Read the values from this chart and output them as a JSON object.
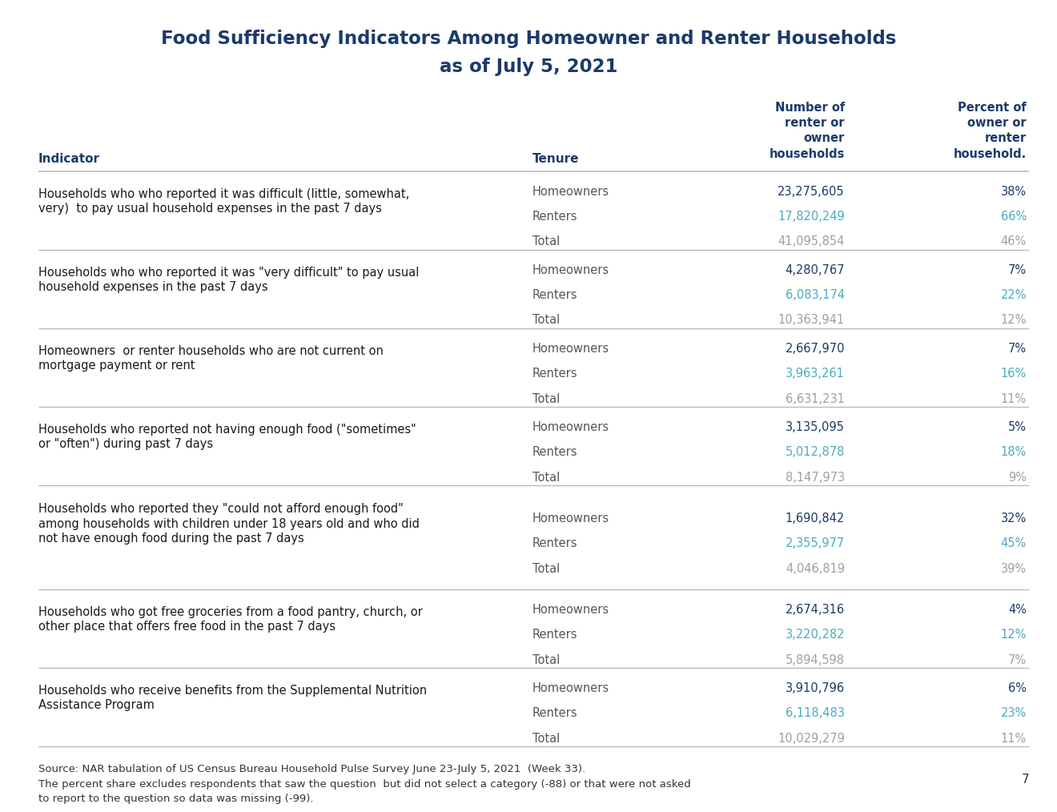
{
  "title_line1": "Food Sufficiency Indicators Among Homeowner and Renter Households",
  "title_line2": "as of July 5, 2021",
  "title_color": "#1a3a6b",
  "rows": [
    {
      "indicator": "Households who who reported it was difficult (little, somewhat,\nvery)  to pay usual household expenses in the past 7 days",
      "n_ind_lines": 2,
      "sub_rows": [
        {
          "tenure": "Homeowners",
          "number": "23,275,605",
          "percent": "38%",
          "num_color": "#1a3a6b",
          "pct_color": "#1a3a6b"
        },
        {
          "tenure": "Renters",
          "number": "17,820,249",
          "percent": "66%",
          "num_color": "#4aacbf",
          "pct_color": "#4aacbf"
        },
        {
          "tenure": "Total",
          "number": "41,095,854",
          "percent": "46%",
          "num_color": "#a0a0a0",
          "pct_color": "#a0a0a0"
        }
      ]
    },
    {
      "indicator": "Households who who reported it was \"very difficult\" to pay usual\nhousehold expenses in the past 7 days",
      "n_ind_lines": 2,
      "sub_rows": [
        {
          "tenure": "Homeowners",
          "number": "4,280,767",
          "percent": "7%",
          "num_color": "#1a3a6b",
          "pct_color": "#1a3a6b"
        },
        {
          "tenure": "Renters",
          "number": "6,083,174",
          "percent": "22%",
          "num_color": "#4aacbf",
          "pct_color": "#4aacbf"
        },
        {
          "tenure": "Total",
          "number": "10,363,941",
          "percent": "12%",
          "num_color": "#a0a0a0",
          "pct_color": "#a0a0a0"
        }
      ]
    },
    {
      "indicator": "Homeowners  or renter households who are not current on\nmortgage payment or rent",
      "n_ind_lines": 2,
      "sub_rows": [
        {
          "tenure": "Homeowners",
          "number": "2,667,970",
          "percent": "7%",
          "num_color": "#1a3a6b",
          "pct_color": "#1a3a6b"
        },
        {
          "tenure": "Renters",
          "number": "3,963,261",
          "percent": "16%",
          "num_color": "#4aacbf",
          "pct_color": "#4aacbf"
        },
        {
          "tenure": "Total",
          "number": "6,631,231",
          "percent": "11%",
          "num_color": "#a0a0a0",
          "pct_color": "#a0a0a0"
        }
      ]
    },
    {
      "indicator": "Households who reported not having enough food (\"sometimes\"\nor \"often\") during past 7 days",
      "n_ind_lines": 2,
      "sub_rows": [
        {
          "tenure": "Homeowners",
          "number": "3,135,095",
          "percent": "5%",
          "num_color": "#1a3a6b",
          "pct_color": "#1a3a6b"
        },
        {
          "tenure": "Renters",
          "number": "5,012,878",
          "percent": "18%",
          "num_color": "#4aacbf",
          "pct_color": "#4aacbf"
        },
        {
          "tenure": "Total",
          "number": "8,147,973",
          "percent": "9%",
          "num_color": "#a0a0a0",
          "pct_color": "#a0a0a0"
        }
      ]
    },
    {
      "indicator": "Households who reported they \"could not afford enough food\"\namong households with children under 18 years old and who did\nnot have enough food during the past 7 days",
      "n_ind_lines": 3,
      "sub_rows": [
        {
          "tenure": "Homeowners",
          "number": "1,690,842",
          "percent": "32%",
          "num_color": "#1a3a6b",
          "pct_color": "#1a3a6b"
        },
        {
          "tenure": "Renters",
          "number": "2,355,977",
          "percent": "45%",
          "num_color": "#4aacbf",
          "pct_color": "#4aacbf"
        },
        {
          "tenure": "Total",
          "number": "4,046,819",
          "percent": "39%",
          "num_color": "#a0a0a0",
          "pct_color": "#a0a0a0"
        }
      ]
    },
    {
      "indicator": "Households who got free groceries from a food pantry, church, or\nother place that offers free food in the past 7 days",
      "n_ind_lines": 2,
      "sub_rows": [
        {
          "tenure": "Homeowners",
          "number": "2,674,316",
          "percent": "4%",
          "num_color": "#1a3a6b",
          "pct_color": "#1a3a6b"
        },
        {
          "tenure": "Renters",
          "number": "3,220,282",
          "percent": "12%",
          "num_color": "#4aacbf",
          "pct_color": "#4aacbf"
        },
        {
          "tenure": "Total",
          "number": "5,894,598",
          "percent": "7%",
          "num_color": "#a0a0a0",
          "pct_color": "#a0a0a0"
        }
      ]
    },
    {
      "indicator": "Households who receive benefits from the Supplemental Nutrition\nAssistance Program",
      "n_ind_lines": 2,
      "sub_rows": [
        {
          "tenure": "Homeowners",
          "number": "3,910,796",
          "percent": "6%",
          "num_color": "#1a3a6b",
          "pct_color": "#1a3a6b"
        },
        {
          "tenure": "Renters",
          "number": "6,118,483",
          "percent": "23%",
          "num_color": "#4aacbf",
          "pct_color": "#4aacbf"
        },
        {
          "tenure": "Total",
          "number": "10,029,279",
          "percent": "11%",
          "num_color": "#a0a0a0",
          "pct_color": "#a0a0a0"
        }
      ]
    }
  ],
  "source_text": "Source: NAR tabulation of US Census Bureau Household Pulse Survey June 23-July 5, 2021  (Week 33).\nThe percent share excludes respondents that saw the question  but did not select a category (-88) or that were not asked\nto report to the question so data was missing (-99).",
  "page_number": "7",
  "bg_color": "#ffffff",
  "header_text_color": "#1a3a6b",
  "indicator_text_color": "#1a1a1a",
  "tenure_text_color": "#555555",
  "line_color": "#bbbbbb",
  "source_text_color": "#333333"
}
